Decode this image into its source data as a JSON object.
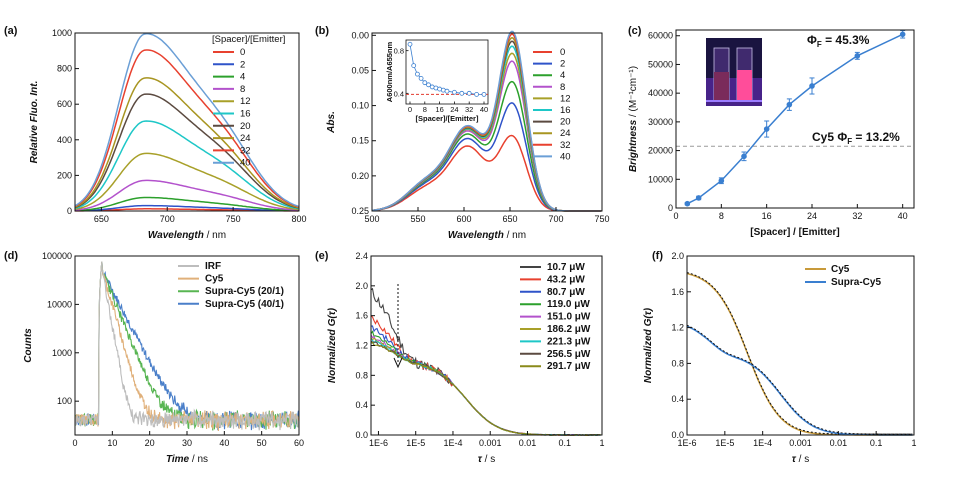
{
  "chart_data": [
    {
      "panel": "(a)",
      "type": "line",
      "xlabel": "Wavelength",
      "xunit": " / nm",
      "ylabel": "Relative Fluo. Int.",
      "xlim": [
        630,
        800
      ],
      "ylim": [
        0,
        1000
      ],
      "xticks": [
        "650",
        "700",
        "750",
        "800"
      ],
      "yticks": [
        "0",
        "200",
        "400",
        "600",
        "800",
        "1000"
      ],
      "legend_title": "[Spacer]/[Emitter]",
      "peak_x": 683,
      "series": [
        {
          "name": "0",
          "color": "#e8412f",
          "peak": 12
        },
        {
          "name": "2",
          "color": "#2f53c9",
          "peak": 30
        },
        {
          "name": "4",
          "color": "#2ca02c",
          "peak": 75
        },
        {
          "name": "8",
          "color": "#b352cc",
          "peak": 170
        },
        {
          "name": "12",
          "color": "#a8a029",
          "peak": 320
        },
        {
          "name": "16",
          "color": "#1ec7c7",
          "peak": 500
        },
        {
          "name": "20",
          "color": "#5b4a40",
          "peak": 650
        },
        {
          "name": "24",
          "color": "#a89521",
          "peak": 740
        },
        {
          "name": "32",
          "color": "#e8412f",
          "peak": 895
        },
        {
          "name": "40",
          "color": "#6b9fd6",
          "peak": 985
        }
      ]
    },
    {
      "panel": "(b)",
      "type": "line",
      "xlabel": "Wavelength",
      "xunit": " / nm",
      "ylabel": "Abs.",
      "xlim": [
        500,
        750
      ],
      "ylim": [
        0,
        0.25
      ],
      "xticks": [
        "500",
        "550",
        "600",
        "650",
        "700",
        "750"
      ],
      "yticks": [
        "0.00",
        "0.05",
        "0.10",
        "0.15",
        "0.20",
        "0.25"
      ],
      "series": [
        {
          "name": "0",
          "color": "#e8412f",
          "peak": 0.102,
          "shoulder": 0.088
        },
        {
          "name": "2",
          "color": "#2f53c9",
          "peak": 0.148,
          "shoulder": 0.098
        },
        {
          "name": "4",
          "color": "#2ca02c",
          "peak": 0.178,
          "shoulder": 0.104
        },
        {
          "name": "8",
          "color": "#b352cc",
          "peak": 0.207,
          "shoulder": 0.108
        },
        {
          "name": "12",
          "color": "#a8a029",
          "peak": 0.218,
          "shoulder": 0.11
        },
        {
          "name": "16",
          "color": "#1ec7c7",
          "peak": 0.228,
          "shoulder": 0.111
        },
        {
          "name": "20",
          "color": "#5b4a40",
          "peak": 0.235,
          "shoulder": 0.112
        },
        {
          "name": "24",
          "color": "#a89521",
          "peak": 0.24,
          "shoulder": 0.113
        },
        {
          "name": "32",
          "color": "#e8412f",
          "peak": 0.245,
          "shoulder": 0.114
        },
        {
          "name": "40",
          "color": "#6b9fd6",
          "peak": 0.249,
          "shoulder": 0.115
        }
      ],
      "inset": {
        "type": "scatter",
        "ylabel": "A600nm/A655nm",
        "xlabel": "[Spacer]/[Emitter]",
        "xticks": [
          "0",
          "8",
          "16",
          "24",
          "32",
          "40"
        ],
        "yticks": [
          "0.4",
          "0.8"
        ],
        "x": [
          0,
          2,
          4,
          6,
          8,
          10,
          12,
          14,
          16,
          18,
          20,
          24,
          28,
          32,
          36,
          40
        ],
        "y": [
          0.86,
          0.66,
          0.58,
          0.54,
          0.5,
          0.48,
          0.46,
          0.45,
          0.44,
          0.43,
          0.42,
          0.41,
          0.4,
          0.4,
          0.39,
          0.39
        ],
        "refline": 0.39
      }
    },
    {
      "panel": "(c)",
      "type": "line",
      "xlabel": "[Spacer] / [Emitter]",
      "ylabel": "Brightness",
      "yunit": " / (M⁻¹cm⁻¹)",
      "xlim": [
        0,
        42
      ],
      "ylim": [
        0,
        62000
      ],
      "xticks": [
        "0",
        "8",
        "16",
        "24",
        "32",
        "40"
      ],
      "yticks": [
        "0",
        "10000",
        "20000",
        "30000",
        "40000",
        "50000",
        "60000"
      ],
      "x": [
        2,
        4,
        8,
        12,
        16,
        20,
        24,
        32,
        40
      ],
      "y": [
        1500,
        3500,
        9500,
        18000,
        27500,
        36000,
        42500,
        53000,
        60500
      ],
      "err": [
        400,
        600,
        1000,
        1500,
        2800,
        2000,
        2800,
        1200,
        1300
      ],
      "refline": 21500,
      "annotations": {
        "top": "Φ",
        "top_sub": "F",
        "top_val": " = 45.3%",
        "mid": "Cy5 Φ",
        "mid_sub": "F",
        "mid_val": " = 13.2%"
      }
    },
    {
      "panel": "(d)",
      "type": "line",
      "xlabel": "Time",
      "xunit": " / ns",
      "ylabel": "Counts",
      "xlim": [
        0,
        60
      ],
      "ylim_log": [
        20,
        100000
      ],
      "xticks": [
        "0",
        "10",
        "20",
        "30",
        "40",
        "50",
        "60"
      ],
      "yticks": [
        "100",
        "1000",
        "10000",
        "100000"
      ],
      "series": [
        {
          "name": "IRF",
          "color": "#bdbdbd",
          "tau": 1.0
        },
        {
          "name": "Cy5",
          "color": "#e0b07a",
          "tau": 1.6
        },
        {
          "name": "Supra-Cy5 (20/1)",
          "color": "#58b552",
          "tau": 2.3
        },
        {
          "name": "Supra-Cy5 (40/1)",
          "color": "#4a7fc9",
          "tau": 2.9
        }
      ]
    },
    {
      "panel": "(e)",
      "type": "line",
      "xlabel": "τ",
      "xunit": " / s",
      "ylabel": "Normalized G(τ)",
      "xlim_log": [
        -6.2,
        0
      ],
      "ylim": [
        0,
        2.4
      ],
      "xticks": [
        "1E-6",
        "1E-5",
        "1E-4",
        "0.001",
        "0.01",
        "0.1",
        "1"
      ],
      "yticks": [
        "0.0",
        "0.4",
        "0.8",
        "1.2",
        "1.6",
        "2.0",
        "2.4"
      ],
      "series": [
        {
          "name": "10.7 μW",
          "color": "#444444",
          "g0": 2.2
        },
        {
          "name": "43.2 μW",
          "color": "#e8412f",
          "g0": 1.75
        },
        {
          "name": "80.7 μW",
          "color": "#2f53c9",
          "g0": 1.58
        },
        {
          "name": "119.0 μW",
          "color": "#2ca02c",
          "g0": 1.48
        },
        {
          "name": "151.0 μW",
          "color": "#b352cc",
          "g0": 1.42
        },
        {
          "name": "186.2 μW",
          "color": "#a8a029",
          "g0": 1.38
        },
        {
          "name": "221.3 μW",
          "color": "#1ec7c7",
          "g0": 1.35
        },
        {
          "name": "256.5 μW",
          "color": "#5b4a40",
          "g0": 1.33
        },
        {
          "name": "291.7 μW",
          "color": "#8a8a1a",
          "g0": 1.31
        }
      ]
    },
    {
      "panel": "(f)",
      "type": "line",
      "xlabel": "τ",
      "xunit": " / s",
      "ylabel": "Normalized G(τ)",
      "xlim_log": [
        -6,
        0
      ],
      "ylim": [
        0,
        2.0
      ],
      "xticks": [
        "1E-6",
        "1E-5",
        "1E-4",
        "0.001",
        "0.01",
        "0.1",
        "1"
      ],
      "yticks": [
        "0.0",
        "0.4",
        "0.8",
        "1.2",
        "1.6",
        "2.0"
      ],
      "series": [
        {
          "name": "Cy5",
          "color": "#c89a3a"
        },
        {
          "name": "Supra-Cy5",
          "color": "#3a7fd0"
        }
      ]
    }
  ]
}
